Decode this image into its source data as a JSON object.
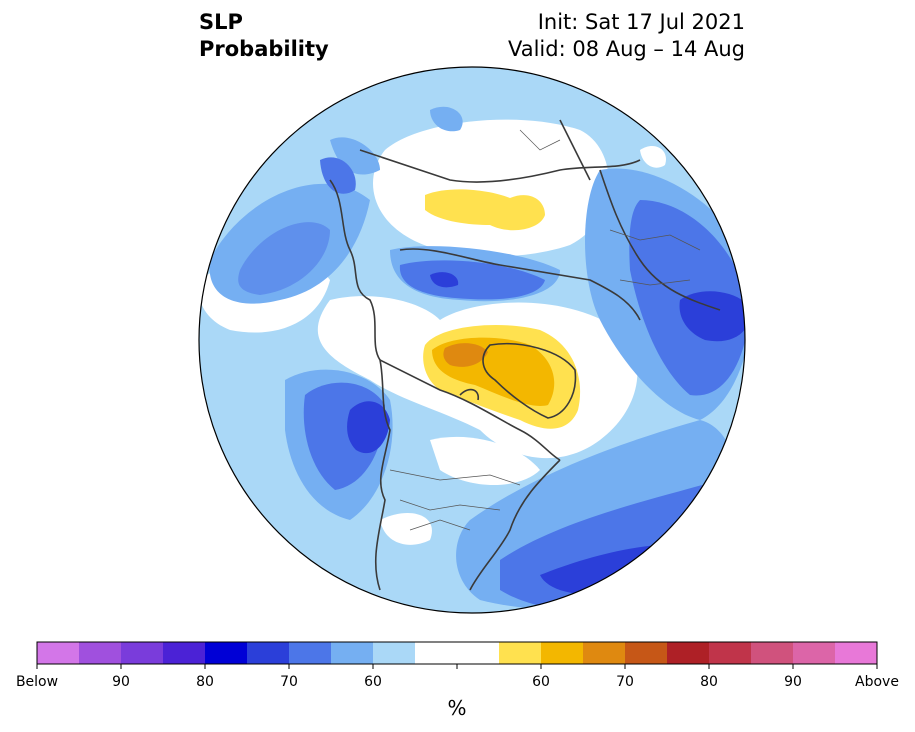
{
  "title": {
    "line1": "SLP",
    "line2": "Probability",
    "init": "Init: Sat 17 Jul 2021",
    "valid": "Valid: 08 Aug – 14 Aug"
  },
  "colorbar": {
    "unit": "%",
    "colors": [
      "#d376e8",
      "#a050de",
      "#7a3cdb",
      "#4b22d6",
      "#0000d6",
      "#2b3fd9",
      "#4c76e8",
      "#75aff2",
      "#aad8f7",
      "#ffffff",
      "#ffffff",
      "#ffe14f",
      "#f3b700",
      "#df8910",
      "#c65717",
      "#ae2026",
      "#c0344a",
      "#d0527d",
      "#dc65a8",
      "#e878d8"
    ],
    "tick_labels": [
      "Below",
      "90",
      "80",
      "70",
      "60",
      "60",
      "70",
      "80",
      "90",
      "Above"
    ]
  },
  "map": {
    "projection": "north-polar-stereographic",
    "field": "sea-level-pressure-probability",
    "features": [
      {
        "name": "above-normal-greenland-arctic",
        "category": "above",
        "max_percent": 70
      },
      {
        "name": "above-normal-east-siberia",
        "category": "above",
        "max_percent": 60
      },
      {
        "name": "below-normal-northeast-pacific",
        "category": "below",
        "max_percent": 80
      },
      {
        "name": "below-normal-central-europe",
        "category": "below",
        "max_percent": 80
      },
      {
        "name": "below-normal-north-atlantic",
        "category": "below",
        "max_percent": 80
      },
      {
        "name": "below-normal-siberia-arctic-coast",
        "category": "below",
        "max_percent": 80
      }
    ]
  }
}
